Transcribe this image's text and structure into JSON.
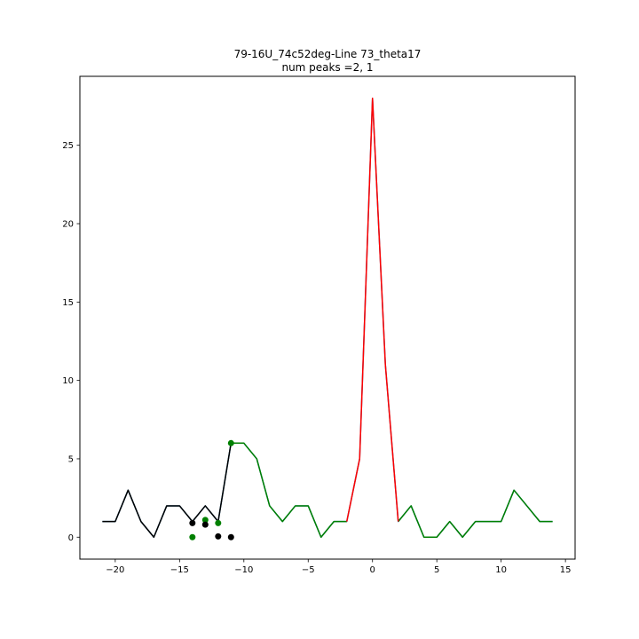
{
  "chart_data": {
    "type": "line",
    "title": "79-16U_74c52deg-Line 73_theta17",
    "subtitle": "num peaks =2, 1",
    "xlabel": "",
    "ylabel": "",
    "xlim": [
      -22.75,
      15.75
    ],
    "ylim": [
      -1.4,
      29.4
    ],
    "xticks": [
      -20,
      -15,
      -10,
      -5,
      0,
      5,
      10,
      15
    ],
    "yticks": [
      0,
      5,
      10,
      15,
      20,
      25
    ],
    "grid": false,
    "series": [
      {
        "color": "#1f77b4",
        "x": [
          -21,
          -20,
          -19,
          -18,
          -17,
          -16,
          -15,
          -14,
          -13,
          -12,
          -11,
          -10,
          -9,
          -8,
          -7,
          -6,
          -5,
          -4,
          -3,
          -2,
          -1,
          0,
          1,
          2,
          3,
          4,
          5,
          6,
          7,
          8,
          9,
          10,
          11,
          12,
          13,
          14
        ],
        "y": [
          1,
          1,
          3,
          1,
          0,
          2,
          2,
          1,
          2,
          1,
          6,
          6,
          5,
          2,
          1,
          2,
          2,
          0,
          1,
          1,
          5,
          28,
          11,
          1,
          2,
          0,
          0,
          1,
          0,
          1,
          1,
          1,
          3,
          2,
          1,
          1
        ]
      },
      {
        "color": "#008000",
        "x": [
          -11,
          -10,
          -9,
          -8,
          -7,
          -6,
          -5,
          -4,
          -3,
          -2
        ],
        "y": [
          6,
          6,
          5,
          2,
          1,
          2,
          2,
          0,
          1,
          1
        ]
      },
      {
        "color": "#008000",
        "x": [
          2,
          3,
          4,
          5,
          6,
          7,
          8,
          9,
          10,
          11,
          12,
          13,
          14
        ],
        "y": [
          1,
          2,
          0,
          0,
          1,
          0,
          1,
          1,
          1,
          3,
          2,
          1,
          1
        ]
      },
      {
        "color": "#ff0000",
        "x": [
          -2,
          -1,
          0,
          1,
          2
        ],
        "y": [
          1,
          5,
          28,
          11,
          1
        ]
      },
      {
        "color": "#000000",
        "x": [
          -21,
          -20,
          -19,
          -18,
          -17,
          -16,
          -15,
          -14,
          -13,
          -12,
          -11
        ],
        "y": [
          1,
          1,
          3,
          1,
          0,
          2,
          2,
          1,
          2,
          1,
          6
        ]
      }
    ],
    "points": [
      {
        "color": "#008000",
        "x": [
          -14,
          -13,
          -12,
          -11
        ],
        "y": [
          0,
          1.1,
          0.9,
          6
        ]
      },
      {
        "color": "#000000",
        "x": [
          -14,
          -13,
          -12,
          -11
        ],
        "y": [
          0.9,
          0.8,
          0.05,
          0
        ]
      }
    ]
  }
}
